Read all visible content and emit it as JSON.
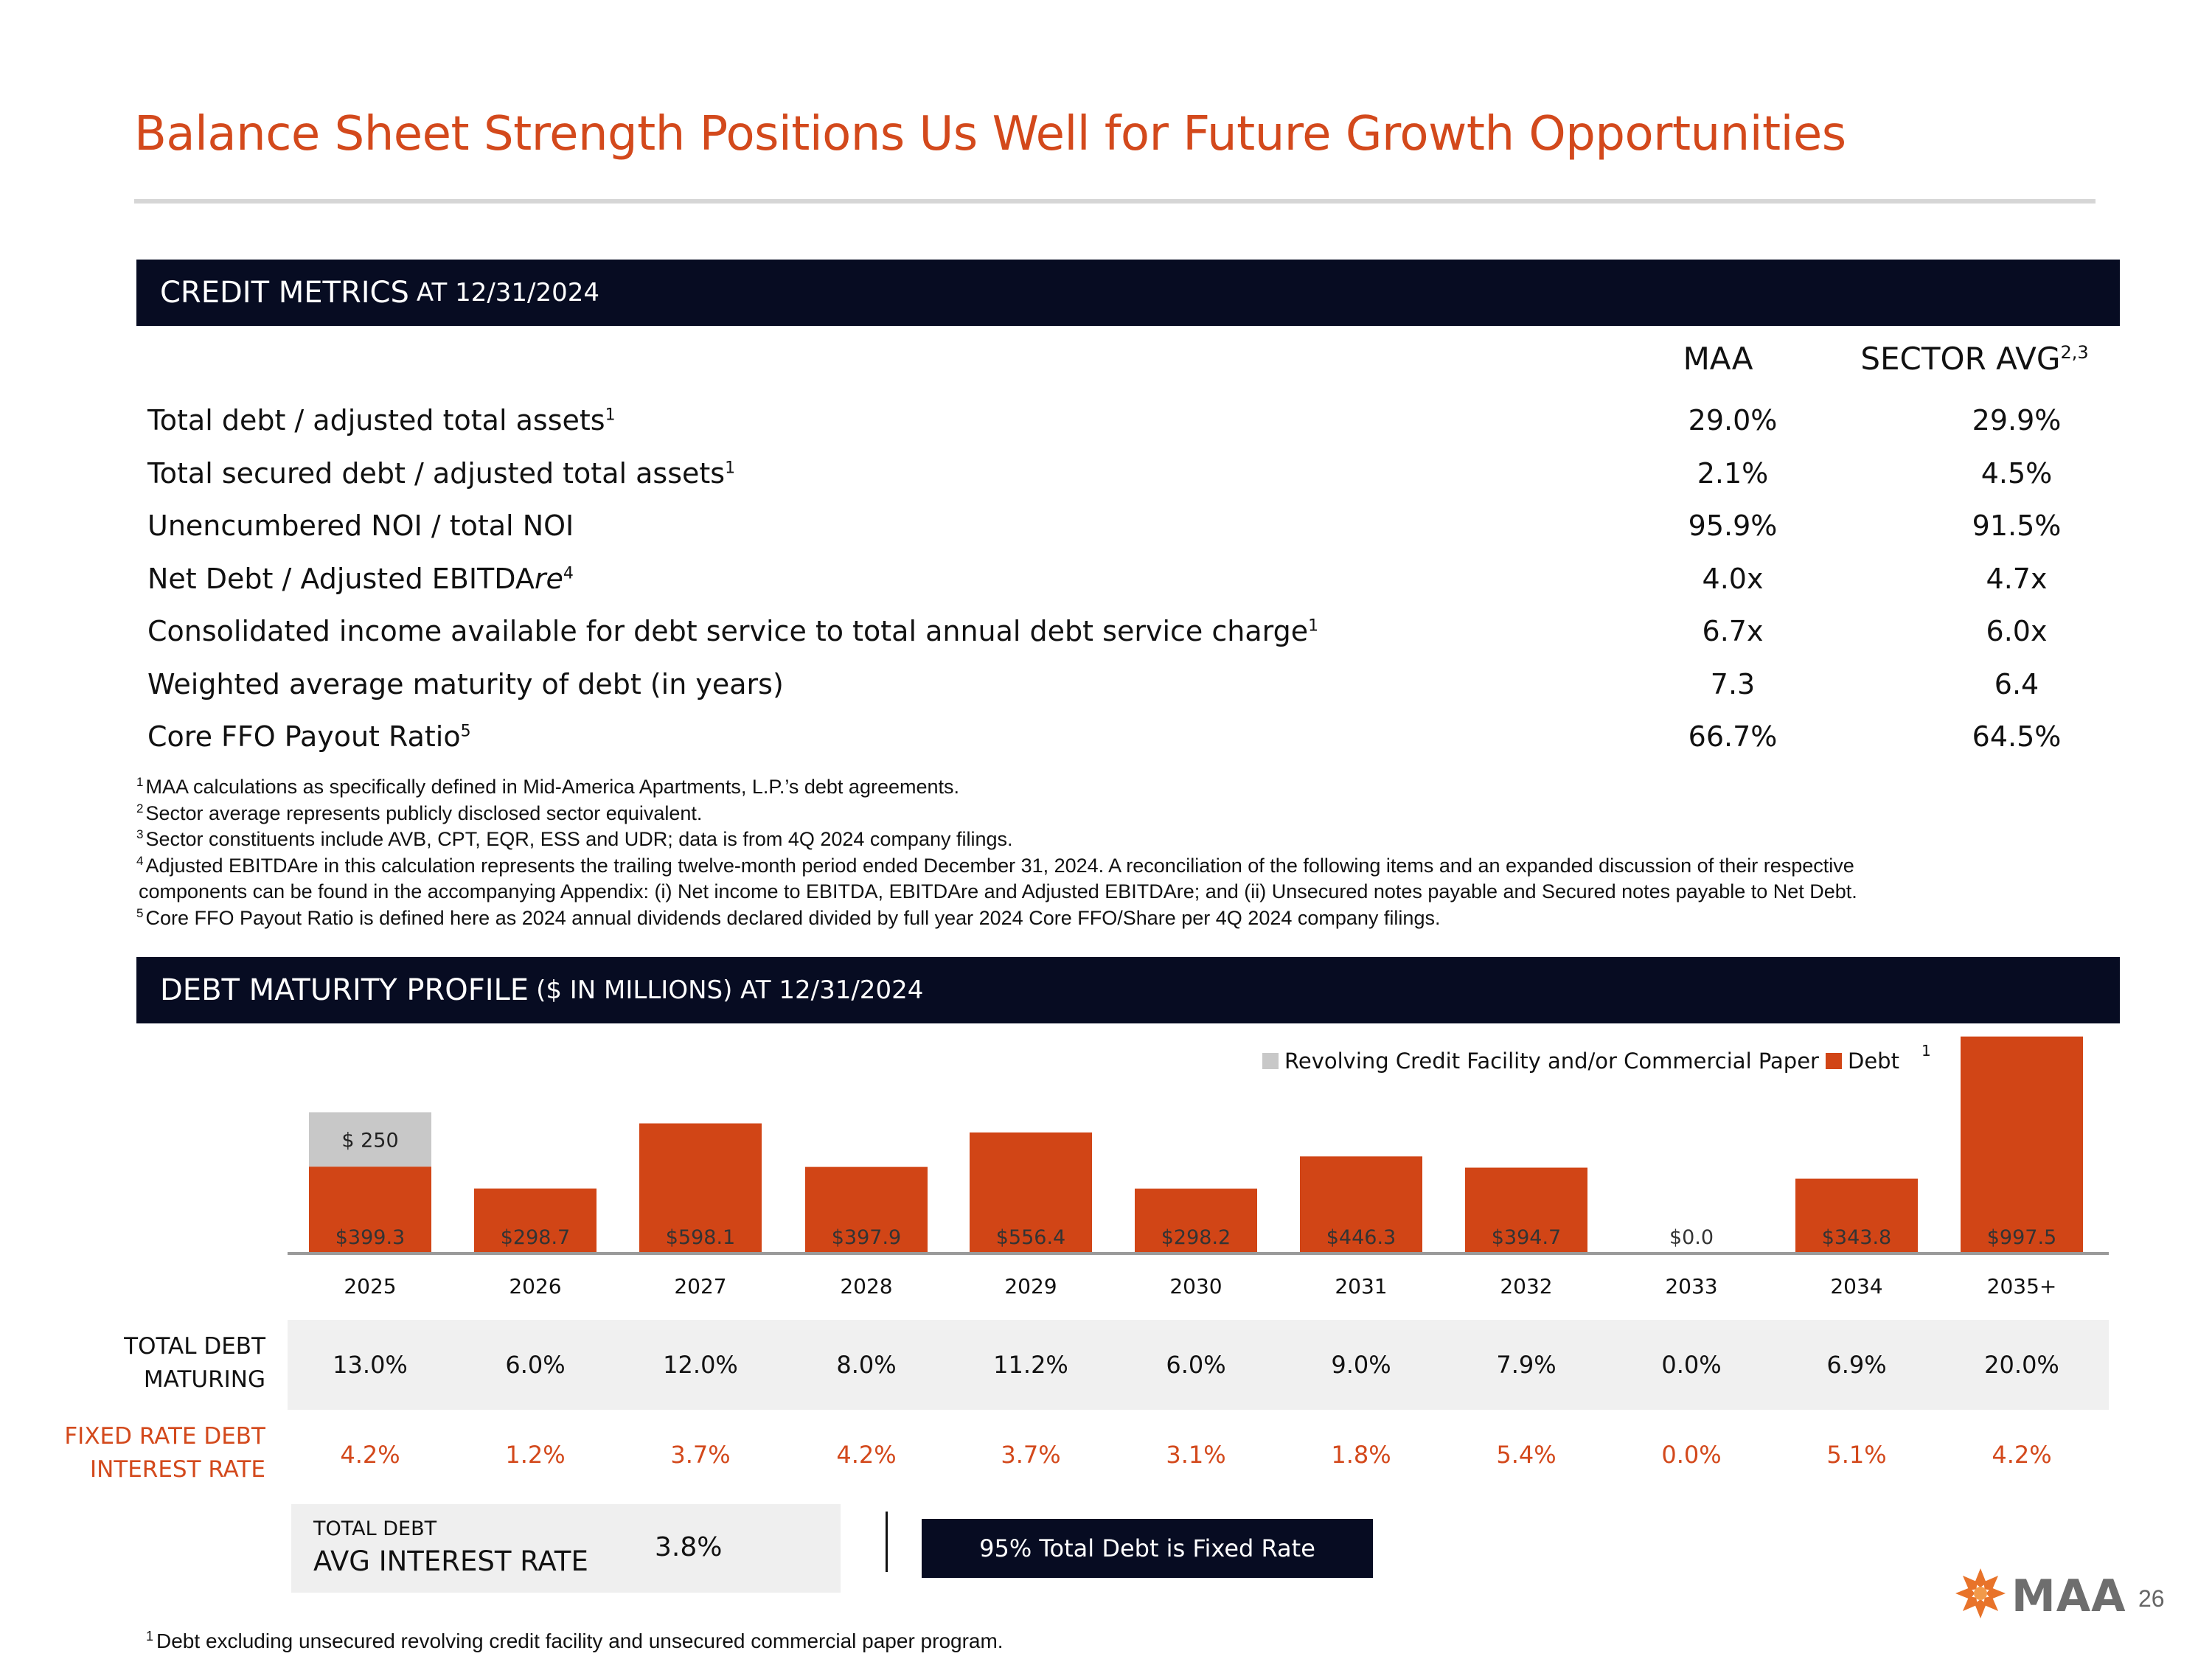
{
  "title": "Balance Sheet Strength Positions Us Well for Future Growth Opportunities",
  "credit_section": {
    "heading_big": "CREDIT METRICS",
    "heading_small": "AT 12/31/2024",
    "col_maa": "MAA",
    "col_sector": "SECTOR AVG",
    "col_sector_sup": "2,3",
    "rows": [
      {
        "label": "Total debt / adjusted total assets",
        "sup": "1",
        "maa": "29.0%",
        "sector": "29.9%"
      },
      {
        "label": "Total secured debt / adjusted total assets",
        "sup": "1",
        "maa": "2.1%",
        "sector": "4.5%"
      },
      {
        "label": "Unencumbered NOI / total NOI",
        "sup": "",
        "maa": "95.9%",
        "sector": "91.5%"
      },
      {
        "label": "Net Debt / Adjusted EBITDA",
        "label_italic": "re",
        "sup": "4",
        "maa": "4.0x",
        "sector": "4.7x"
      },
      {
        "label": "Consolidated income available for debt service to total annual debt service charge",
        "sup": "1",
        "maa": "6.7x",
        "sector": "6.0x"
      },
      {
        "label": "Weighted average maturity of debt (in years)",
        "sup": "",
        "maa": "7.3",
        "sector": "6.4"
      },
      {
        "label": "Core FFO Payout Ratio",
        "sup": "5",
        "maa": "66.7%",
        "sector": "64.5%"
      }
    ]
  },
  "footnotes": [
    {
      "num": "1",
      "text": "MAA calculations as specifically defined in Mid-America Apartments, L.P.’s debt agreements."
    },
    {
      "num": "2",
      "text": "Sector average represents publicly disclosed sector equivalent."
    },
    {
      "num": "3",
      "text": "Sector constituents include AVB, CPT, EQR, ESS and UDR; data is from 4Q 2024 company filings."
    },
    {
      "num": "4",
      "text": "Adjusted EBITDAre in this calculation represents the trailing twelve-month period ended December 31, 2024. A reconciliation of the following items and an expanded discussion of their respective"
    },
    {
      "num": "",
      "text": "components can be found in the accompanying Appendix: (i) Net income to EBITDA, EBITDAre and Adjusted EBITDAre; and (ii) Unsecured notes payable and Secured notes payable to Net Debt."
    },
    {
      "num": "5",
      "text": "Core FFO Payout Ratio is defined here as 2024 annual dividends declared divided by full year 2024 Core FFO/Share per 4Q 2024 company filings."
    }
  ],
  "debt_section": {
    "heading_big": "DEBT MATURITY PROFILE",
    "heading_small": "($ IN MILLIONS) AT 12/31/2024"
  },
  "chart_data": {
    "type": "bar",
    "stacked": true,
    "categories": [
      "2025",
      "2026",
      "2027",
      "2028",
      "2029",
      "2030",
      "2031",
      "2032",
      "2033",
      "2034",
      "2035+"
    ],
    "series": [
      {
        "name": "Debt",
        "color": "#d14516",
        "values": [
          399.3,
          298.7,
          598.1,
          397.9,
          556.4,
          298.2,
          446.3,
          394.7,
          0.0,
          343.8,
          997.5
        ],
        "labels": [
          "$399.3",
          "$298.7",
          "$598.1",
          "$397.9",
          "$556.4",
          "$298.2",
          "$446.3",
          "$394.7",
          "$0.0",
          "$343.8",
          "$997.5"
        ]
      },
      {
        "name": "Revolving Credit Facility and/or Commercial Paper",
        "color": "#c8c8c8",
        "values": [
          250,
          0,
          0,
          0,
          0,
          0,
          0,
          0,
          0,
          0,
          0
        ],
        "labels": [
          "$ 250",
          "",
          "",
          "",
          "",
          "",
          "",
          "",
          "",
          "",
          ""
        ]
      }
    ],
    "legend": [
      "Revolving Credit Facility and/or Commercial Paper",
      "Debt"
    ],
    "legend_debt_sup": "1",
    "ylim": [
      0,
      1000
    ]
  },
  "maturity_rows": {
    "total_title_1": "TOTAL DEBT",
    "total_title_2": "MATURING",
    "total_values": [
      "13.0%",
      "6.0%",
      "12.0%",
      "8.0%",
      "11.2%",
      "6.0%",
      "9.0%",
      "7.9%",
      "0.0%",
      "6.9%",
      "20.0%"
    ],
    "fixed_title_1": "FIXED RATE DEBT",
    "fixed_title_2": "INTEREST RATE",
    "fixed_values": [
      "4.2%",
      "1.2%",
      "3.7%",
      "4.2%",
      "3.7%",
      "3.1%",
      "1.8%",
      "5.4%",
      "0.0%",
      "5.1%",
      "4.2%"
    ]
  },
  "summary": {
    "avg_small": "TOTAL DEBT",
    "avg_big": "AVG INTEREST RATE",
    "avg_value": "3.8%",
    "fixed_note": "95% Total Debt is Fixed Rate"
  },
  "bottom_footnote": {
    "num": "1",
    "text": "Debt excluding unsecured revolving credit facility and unsecured commercial paper program."
  },
  "logo_text": "MAA",
  "page_number": "26",
  "colors": {
    "accent": "#d3491c",
    "navy": "#070c22",
    "gray_bar": "#c8c8c8"
  }
}
